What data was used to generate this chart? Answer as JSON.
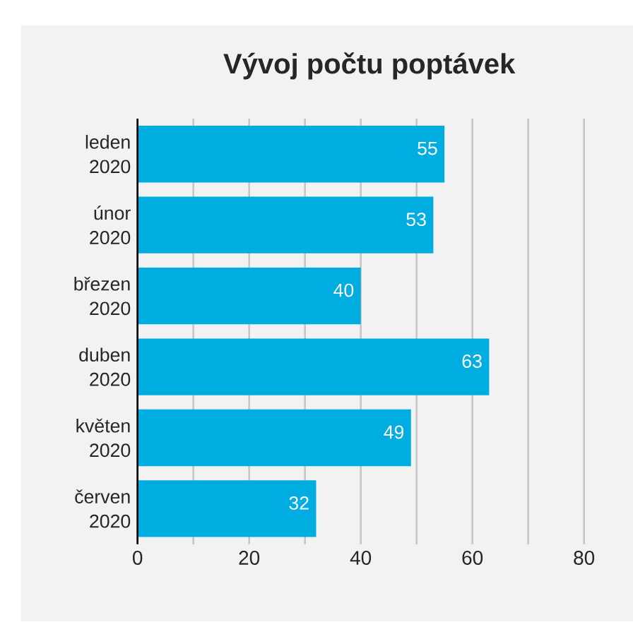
{
  "chart_data": {
    "type": "bar",
    "orientation": "horizontal",
    "title": "Vývoj počtu poptávek",
    "categories": [
      "leden 2020",
      "únor 2020",
      "březen 2020",
      "duben 2020",
      "květen 2020",
      "červen 2020"
    ],
    "values": [
      55,
      53,
      40,
      63,
      49,
      32
    ],
    "color": "#00ade0",
    "data_labels": true,
    "xlim": [
      0,
      80
    ],
    "xticks": [
      0,
      {
        "value": 10,
        "label": null
      },
      20,
      {
        "value": 30,
        "label": null
      },
      40,
      {
        "value": 50,
        "label": null
      },
      60,
      {
        "value": 70,
        "label": null
      },
      80
    ],
    "grid": "x"
  }
}
